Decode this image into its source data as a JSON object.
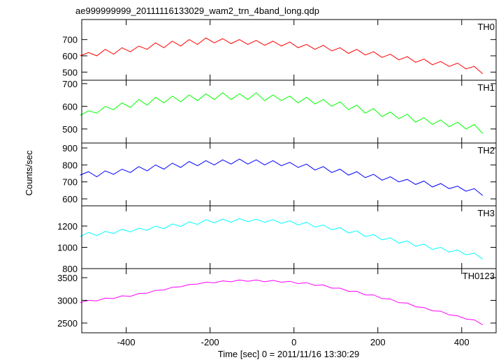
{
  "chart_data": {
    "type": "line",
    "title": "ae999999999_20111116133029_wam2_trn_4band_long.qdp",
    "xlabel": "Time [sec] 0 = 2011/11/16 13:30:29",
    "ylabel": "Counts/sec",
    "xlim": [
      -506,
      482
    ],
    "xticks": [
      -400,
      -200,
      0,
      200,
      400
    ],
    "x": [
      -510,
      -490,
      -470,
      -450,
      -430,
      -410,
      -390,
      -370,
      -350,
      -330,
      -310,
      -290,
      -270,
      -250,
      -230,
      -210,
      -190,
      -170,
      -150,
      -130,
      -110,
      -90,
      -70,
      -50,
      -30,
      -10,
      10,
      30,
      50,
      70,
      90,
      110,
      130,
      150,
      170,
      190,
      210,
      230,
      250,
      270,
      290,
      310,
      330,
      350,
      370,
      390,
      410,
      430,
      450
    ],
    "panels": [
      {
        "name": "TH0",
        "color": "#ff0000",
        "ylim": [
          450,
          823
        ],
        "yticks": [
          500,
          600,
          700
        ],
        "values": [
          600,
          620,
          600,
          640,
          610,
          650,
          625,
          660,
          640,
          680,
          650,
          690,
          660,
          700,
          670,
          710,
          680,
          705,
          675,
          700,
          670,
          695,
          665,
          690,
          660,
          685,
          650,
          670,
          640,
          665,
          630,
          650,
          615,
          640,
          605,
          625,
          590,
          610,
          575,
          595,
          560,
          580,
          545,
          565,
          535,
          555,
          520,
          535,
          490
        ]
      },
      {
        "name": "TH1",
        "color": "#00ff00",
        "ylim": [
          438,
          715
        ],
        "yticks": [
          500,
          600,
          700
        ],
        "values": [
          560,
          580,
          570,
          600,
          585,
          615,
          595,
          630,
          605,
          640,
          615,
          645,
          620,
          650,
          625,
          655,
          630,
          660,
          630,
          655,
          630,
          660,
          625,
          650,
          625,
          645,
          615,
          640,
          610,
          630,
          600,
          620,
          585,
          605,
          570,
          590,
          555,
          575,
          545,
          565,
          530,
          550,
          520,
          540,
          510,
          530,
          500,
          520,
          480
        ]
      },
      {
        "name": "TH2",
        "color": "#0000ff",
        "ylim": [
          559,
          929
        ],
        "yticks": [
          600,
          700,
          800,
          900
        ],
        "values": [
          740,
          760,
          730,
          765,
          745,
          775,
          755,
          790,
          765,
          800,
          775,
          810,
          785,
          820,
          795,
          825,
          800,
          830,
          805,
          835,
          805,
          830,
          800,
          825,
          795,
          815,
          785,
          805,
          770,
          790,
          755,
          775,
          740,
          760,
          725,
          745,
          710,
          730,
          700,
          715,
          685,
          705,
          670,
          690,
          660,
          675,
          645,
          660,
          620
        ]
      },
      {
        "name": "TH3",
        "color": "#00ffff",
        "ylim": [
          800,
          1390
        ],
        "yticks": [
          800,
          1000,
          1200
        ],
        "values": [
          1100,
          1140,
          1110,
          1150,
          1130,
          1170,
          1145,
          1180,
          1160,
          1200,
          1175,
          1220,
          1195,
          1240,
          1215,
          1260,
          1230,
          1265,
          1235,
          1270,
          1240,
          1265,
          1235,
          1260,
          1225,
          1250,
          1210,
          1235,
          1190,
          1210,
          1165,
          1185,
          1135,
          1155,
          1100,
          1120,
          1070,
          1090,
          1040,
          1060,
          1010,
          1030,
          980,
          1000,
          955,
          975,
          930,
          945,
          890
        ]
      },
      {
        "name": "TH0123",
        "color": "#ff00ff",
        "ylim": [
          2285,
          3700
        ],
        "yticks": [
          2500,
          3000,
          3500
        ],
        "values": [
          2950,
          3000,
          2990,
          3050,
          3040,
          3100,
          3090,
          3150,
          3160,
          3220,
          3230,
          3290,
          3300,
          3350,
          3360,
          3400,
          3390,
          3430,
          3410,
          3450,
          3420,
          3450,
          3410,
          3440,
          3400,
          3420,
          3370,
          3390,
          3330,
          3340,
          3270,
          3270,
          3200,
          3200,
          3120,
          3120,
          3040,
          3030,
          2950,
          2940,
          2860,
          2840,
          2770,
          2760,
          2680,
          2660,
          2590,
          2570,
          2460
        ]
      }
    ]
  }
}
